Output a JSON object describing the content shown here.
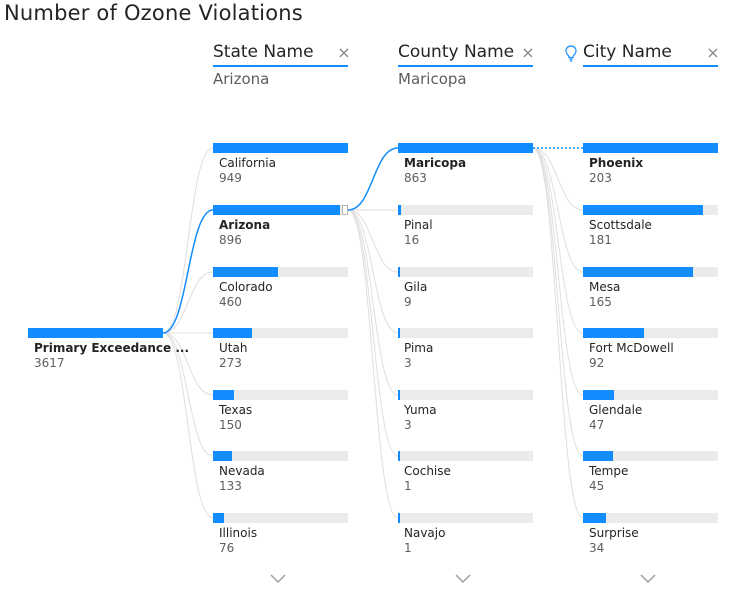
{
  "title": "Number of Ozone Violations",
  "colors": {
    "accent": "#118dff",
    "track": "#ebebeb",
    "link": "#e1dfdd"
  },
  "columns": [
    {
      "name": "State Name",
      "selected_value": "Arizona",
      "icons": [
        "close-icon"
      ]
    },
    {
      "name": "County Name",
      "selected_value": "Maricopa",
      "icons": [
        "close-icon"
      ]
    },
    {
      "name": "City Name",
      "selected_value": "",
      "icons": [
        "lightbulb-icon",
        "close-icon"
      ]
    }
  ],
  "chart_data": {
    "type": "decomposition-tree",
    "title": "Number of Ozone Violations",
    "root": {
      "label": "Primary Exceedance ...",
      "value": 3617
    },
    "levels": [
      {
        "name": "State Name",
        "selected": "Arizona",
        "max": 949,
        "items": [
          {
            "label": "California",
            "value": 949
          },
          {
            "label": "Arizona",
            "value": 896
          },
          {
            "label": "Colorado",
            "value": 460
          },
          {
            "label": "Utah",
            "value": 273
          },
          {
            "label": "Texas",
            "value": 150
          },
          {
            "label": "Nevada",
            "value": 133
          },
          {
            "label": "Illinois",
            "value": 76
          }
        ]
      },
      {
        "name": "County Name",
        "selected": "Maricopa",
        "max": 863,
        "items": [
          {
            "label": "Maricopa",
            "value": 863
          },
          {
            "label": "Pinal",
            "value": 16
          },
          {
            "label": "Gila",
            "value": 9
          },
          {
            "label": "Pima",
            "value": 3
          },
          {
            "label": "Yuma",
            "value": 3
          },
          {
            "label": "Cochise",
            "value": 1
          },
          {
            "label": "Navajo",
            "value": 1
          }
        ]
      },
      {
        "name": "City Name",
        "selected": "Phoenix",
        "max": 203,
        "items": [
          {
            "label": "Phoenix",
            "value": 203
          },
          {
            "label": "Scottsdale",
            "value": 181
          },
          {
            "label": "Mesa",
            "value": 165
          },
          {
            "label": "Fort McDowell",
            "value": 92
          },
          {
            "label": "Glendale",
            "value": 47
          },
          {
            "label": "Tempe",
            "value": 45
          },
          {
            "label": "Surprise",
            "value": 34
          }
        ]
      }
    ]
  }
}
